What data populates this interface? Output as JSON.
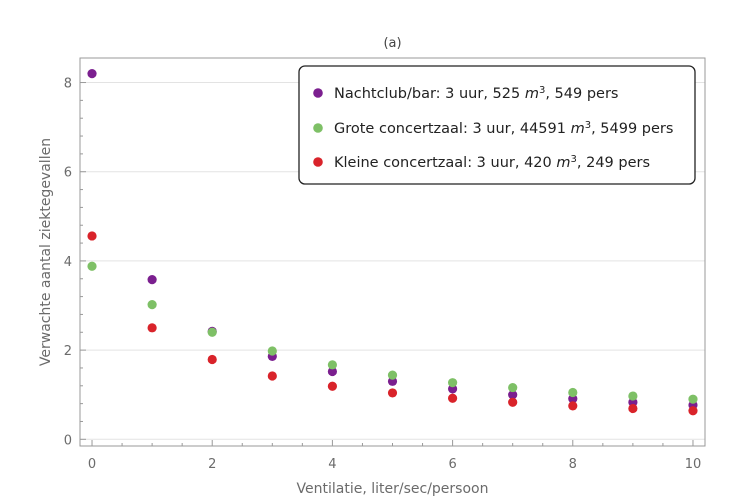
{
  "chart_data": {
    "type": "scatter",
    "title": "(a)",
    "xlabel": "Ventilatie, liter/sec/persoon",
    "ylabel": "Verwachte aantal ziektegevallen",
    "xlim": [
      -0.2,
      10.2
    ],
    "ylim": [
      -0.15,
      8.55
    ],
    "x_ticks": [
      0,
      2,
      4,
      6,
      8,
      10
    ],
    "y_ticks": [
      0,
      2,
      4,
      6,
      8
    ],
    "x_tick_labels": [
      "0",
      "2",
      "4",
      "6",
      "8",
      "10"
    ],
    "y_tick_labels": [
      "0",
      "2",
      "4",
      "6",
      "8"
    ],
    "grid": "horizontal",
    "legend_position": "top-right",
    "x": [
      0,
      1,
      2,
      3,
      4,
      5,
      6,
      7,
      8,
      9,
      10
    ],
    "series": [
      {
        "name_parts": [
          "Nachtclub/bar: 3 uur, 525 ",
          "m",
          "3",
          ", 549 pers"
        ],
        "color": "#7b1f8f",
        "values": [
          8.2,
          3.58,
          2.42,
          1.86,
          1.52,
          1.3,
          1.13,
          1.0,
          0.91,
          0.83,
          0.77
        ]
      },
      {
        "name_parts": [
          "Grote concertzaal: 3 uur, 44591 ",
          "m",
          "3",
          ", 5499 pers"
        ],
        "color": "#7ec066",
        "values": [
          3.88,
          3.02,
          2.4,
          1.98,
          1.67,
          1.44,
          1.27,
          1.16,
          1.05,
          0.97,
          0.9
        ]
      },
      {
        "name_parts": [
          "Kleine concertzaal: 3 uur, 420 ",
          "m",
          "3",
          ", 249 pers"
        ],
        "color": "#d9232a",
        "values": [
          4.56,
          2.5,
          1.79,
          1.42,
          1.19,
          1.04,
          0.92,
          0.83,
          0.75,
          0.69,
          0.64
        ]
      }
    ]
  }
}
